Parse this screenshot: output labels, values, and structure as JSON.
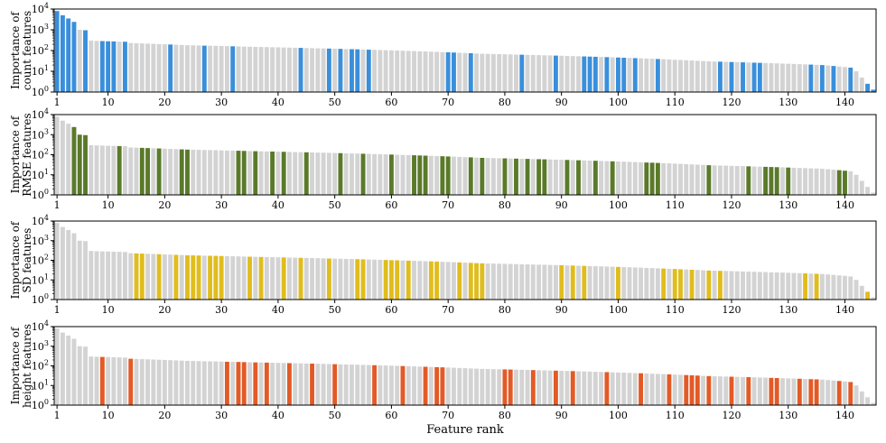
{
  "chart_data": {
    "type": "bar",
    "xlabel": "Feature rank",
    "x_ticks": [
      1,
      10,
      20,
      30,
      40,
      50,
      60,
      70,
      80,
      90,
      100,
      110,
      120,
      130,
      140
    ],
    "x_range": [
      1,
      145
    ],
    "y_scale": "log",
    "y_range": [
      1,
      10000
    ],
    "y_ticks": [
      {
        "base": "10",
        "exp": "0"
      },
      {
        "base": "10",
        "exp": "1"
      },
      {
        "base": "10",
        "exp": "2"
      },
      {
        "base": "10",
        "exp": "3"
      },
      {
        "base": "10",
        "exp": "4"
      }
    ],
    "colors": {
      "base": "#d3d3d3",
      "count": "#3a8fdb",
      "rmse": "#5a7a2a",
      "sd": "#e0bd1e",
      "height": "#e35a26"
    },
    "importance_by_rank": [
      8000,
      5000,
      3500,
      2400,
      1000,
      950,
      300,
      290,
      285,
      280,
      275,
      270,
      265,
      230,
      225,
      220,
      215,
      210,
      205,
      200,
      195,
      190,
      185,
      180,
      178,
      175,
      172,
      170,
      168,
      165,
      162,
      160,
      158,
      155,
      152,
      150,
      148,
      146,
      144,
      142,
      140,
      138,
      136,
      134,
      132,
      130,
      128,
      126,
      124,
      122,
      120,
      118,
      116,
      114,
      112,
      110,
      108,
      106,
      104,
      102,
      100,
      98,
      96,
      94,
      92,
      90,
      88,
      86,
      84,
      82,
      80,
      78,
      76,
      74,
      72,
      70,
      69,
      68,
      67,
      66,
      65,
      64,
      63,
      62,
      61,
      60,
      59,
      58,
      57,
      56,
      55,
      54,
      53,
      52,
      51,
      50,
      49,
      48,
      47,
      46,
      45,
      44,
      43,
      42,
      41,
      40,
      39,
      38,
      37,
      36,
      35,
      34,
      33,
      32,
      31,
      30,
      29.5,
      29,
      28.5,
      28,
      27.5,
      27,
      26.5,
      26,
      25.5,
      25,
      24.5,
      24,
      23.5,
      23,
      22.5,
      22,
      21.5,
      21,
      20.5,
      20,
      19,
      18,
      17,
      16,
      15,
      10,
      5,
      2.5,
      1.3
    ],
    "panels": [
      {
        "name": "count",
        "ylabel_line1": "Importance of",
        "ylabel_line2": "count features",
        "highlighted_ranks": [
          1,
          2,
          3,
          4,
          6,
          9,
          10,
          11,
          13,
          21,
          27,
          32,
          44,
          49,
          51,
          53,
          54,
          56,
          70,
          71,
          74,
          83,
          89,
          94,
          95,
          96,
          98,
          100,
          101,
          103,
          107,
          118,
          120,
          122,
          124,
          125,
          134,
          136,
          138,
          141,
          144,
          145
        ]
      },
      {
        "name": "rmse",
        "ylabel_line1": "Importance of",
        "ylabel_line2": "RMSE features",
        "highlighted_ranks": [
          4,
          5,
          6,
          12,
          16,
          17,
          19,
          23,
          24,
          33,
          34,
          36,
          39,
          41,
          45,
          51,
          55,
          60,
          64,
          65,
          66,
          69,
          70,
          74,
          76,
          80,
          82,
          84,
          86,
          87,
          91,
          93,
          96,
          99,
          105,
          106,
          107,
          116,
          123,
          126,
          127,
          128,
          130,
          139,
          140
        ]
      },
      {
        "name": "sd",
        "ylabel_line1": "Importance of",
        "ylabel_line2": "SD features",
        "highlighted_ranks": [
          15,
          16,
          19,
          22,
          24,
          25,
          26,
          28,
          29,
          30,
          35,
          37,
          41,
          44,
          49,
          54,
          55,
          59,
          60,
          61,
          63,
          67,
          68,
          72,
          74,
          75,
          76,
          90,
          92,
          94,
          100,
          108,
          110,
          111,
          113,
          116,
          118,
          133,
          135,
          144
        ]
      },
      {
        "name": "height",
        "ylabel_line1": "Importance of",
        "ylabel_line2": "height features",
        "highlighted_ranks": [
          9,
          14,
          31,
          33,
          34,
          36,
          38,
          42,
          46,
          50,
          57,
          62,
          66,
          68,
          69,
          80,
          81,
          85,
          89,
          92,
          98,
          104,
          109,
          112,
          113,
          114,
          116,
          120,
          123,
          127,
          128,
          132,
          134,
          135,
          139,
          141
        ]
      }
    ]
  }
}
